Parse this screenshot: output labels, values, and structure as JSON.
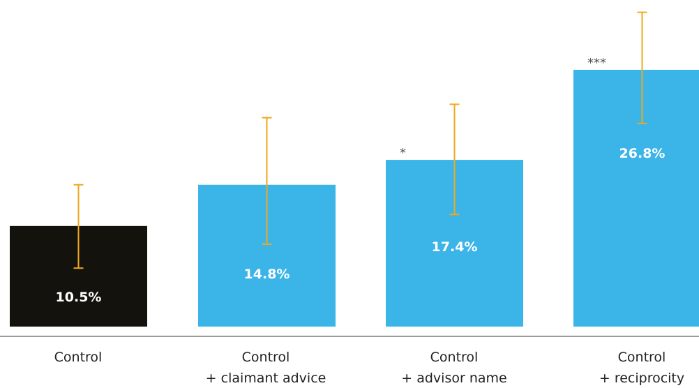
{
  "chart_data": {
    "type": "bar",
    "categories": [
      [
        "Control"
      ],
      [
        "Control",
        "+ claimant advice"
      ],
      [
        "Control",
        "+ advisor name"
      ],
      [
        "Control",
        "+ reciprocity"
      ]
    ],
    "values": [
      10.5,
      14.8,
      17.4,
      26.8
    ],
    "value_labels": [
      "10.5%",
      "14.8%",
      "17.4%",
      "26.8%"
    ],
    "error_bars": [
      [
        6.1,
        14.8
      ],
      [
        8.6,
        21.8
      ],
      [
        11.7,
        23.2
      ],
      [
        21.2,
        32.8
      ]
    ],
    "significance": [
      "",
      "",
      "*",
      "***"
    ],
    "colors": {
      "bars": [
        "#14120d",
        "#3bb4e8",
        "#3bb4e8",
        "#3bb4e8"
      ],
      "error_bar": "#f0a81e",
      "axis": "#9a9a9a"
    },
    "ylim": [
      0,
      33.5
    ],
    "grid": false,
    "legend": "none"
  }
}
